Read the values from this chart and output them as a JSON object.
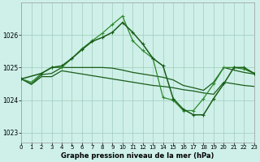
{
  "bg_color": "#cef0e8",
  "grid_color": "#a0ccbb",
  "dark_green": "#1a5c1a",
  "light_green": "#2e8b2e",
  "title": "Graphe pression niveau de la mer (hPa)",
  "xlim": [
    0,
    23
  ],
  "ylim": [
    1022.7,
    1027.0
  ],
  "yticks": [
    1023,
    1024,
    1025,
    1026
  ],
  "xticks": [
    0,
    1,
    2,
    3,
    4,
    5,
    6,
    7,
    8,
    9,
    10,
    11,
    12,
    13,
    14,
    15,
    16,
    17,
    18,
    19,
    20,
    21,
    22,
    23
  ],
  "s1_x": [
    0,
    1,
    2,
    3,
    4,
    5,
    6,
    7,
    8,
    9,
    10,
    11,
    12,
    13,
    14,
    15,
    16,
    17,
    18,
    19,
    20,
    21,
    22,
    23
  ],
  "s1_y": [
    1024.65,
    1024.55,
    1024.82,
    1025.0,
    1025.0,
    1025.28,
    1025.58,
    1025.82,
    1026.05,
    1026.32,
    1026.58,
    1025.82,
    1025.52,
    1025.28,
    1024.08,
    1024.0,
    1023.68,
    1023.68,
    1024.05,
    1024.5,
    1025.0,
    1025.0,
    1024.95,
    1024.82
  ],
  "s2_x": [
    0,
    1,
    2,
    3,
    4,
    5,
    6,
    7,
    8,
    9,
    10,
    11,
    12,
    13,
    14,
    15,
    16,
    17,
    18,
    19,
    20,
    21,
    22,
    23
  ],
  "s2_y": [
    1024.65,
    1024.5,
    1024.78,
    1024.82,
    1025.0,
    1025.0,
    1025.0,
    1025.0,
    1025.0,
    1024.98,
    1024.92,
    1024.85,
    1024.8,
    1024.75,
    1024.7,
    1024.62,
    1024.45,
    1024.38,
    1024.3,
    1024.55,
    1025.0,
    1024.92,
    1024.85,
    1024.8
  ],
  "s3_x": [
    0,
    1,
    2,
    3,
    4,
    5,
    6,
    7,
    8,
    9,
    10,
    11,
    12,
    13,
    14,
    15,
    16,
    17,
    18,
    19,
    20,
    21,
    22,
    23
  ],
  "s3_y": [
    1024.65,
    1024.48,
    1024.72,
    1024.72,
    1024.9,
    1024.85,
    1024.8,
    1024.75,
    1024.7,
    1024.65,
    1024.6,
    1024.55,
    1024.5,
    1024.45,
    1024.42,
    1024.38,
    1024.32,
    1024.28,
    1024.22,
    1024.18,
    1024.55,
    1024.5,
    1024.45,
    1024.42
  ],
  "s4_x": [
    0,
    2,
    3,
    4,
    5,
    6,
    7,
    8,
    9,
    10,
    11,
    12,
    13,
    14,
    15,
    16,
    17,
    18,
    19,
    20,
    21,
    22,
    23
  ],
  "s4_y": [
    1024.65,
    1024.82,
    1025.0,
    1025.05,
    1025.28,
    1025.55,
    1025.8,
    1025.92,
    1026.08,
    1026.38,
    1026.08,
    1025.72,
    1025.28,
    1025.05,
    1024.05,
    1023.72,
    1023.55,
    1023.55,
    1024.05,
    1024.5,
    1025.0,
    1025.0,
    1024.82
  ]
}
